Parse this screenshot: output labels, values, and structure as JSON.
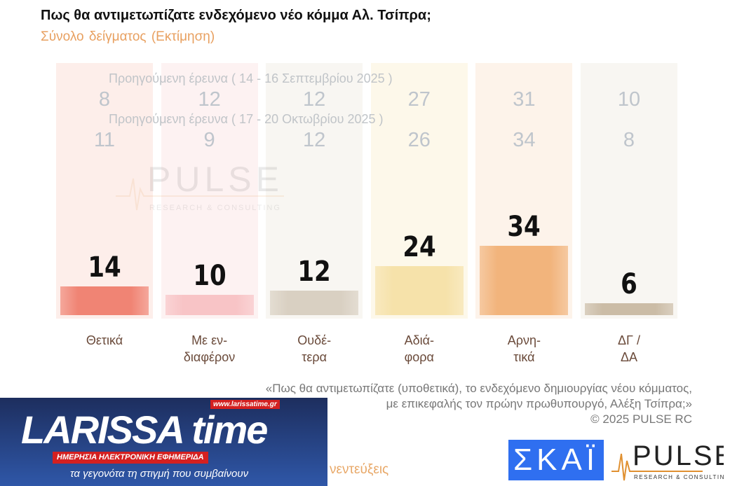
{
  "title": "Πως θα αντιμετωπίζατε ενδεχόμενο νέο κόμμα Αλ. Τσίπρα;",
  "subtitle": "Σύνολο δείγματος   (Εκτίμηση)",
  "chart_data": {
    "type": "bar",
    "title": "Πως θα αντιμετωπίζατε ενδεχόμενο νέο κόμμα Αλ. Τσίπρα;",
    "categories": [
      [
        "Θετικά",
        ""
      ],
      [
        "Με εν-",
        "διαφέρον"
      ],
      [
        "Ουδέ-",
        "τερα"
      ],
      [
        "Αδιά-",
        "φορα"
      ],
      [
        "Αρνη-",
        "τικά"
      ],
      [
        "ΔΓ /",
        "ΔΑ"
      ]
    ],
    "values": [
      14,
      10,
      12,
      24,
      34,
      6
    ],
    "colors": [
      "#f08474",
      "#f8c4c6",
      "#d9d0c2",
      "#f6e2aa",
      "#f2b47c",
      "#cbbca6"
    ],
    "bg_colors": [
      "#fdeeea",
      "#fdf2f2",
      "#f8f6f2",
      "#fdf8ea",
      "#fdf3ea",
      "#f8f6f2"
    ],
    "previous": [
      {
        "label": "Προηγούμενη έρευνα ( 14 - 16 Σεπτεμβρίου 2025 )",
        "values": [
          8,
          12,
          12,
          27,
          31,
          10
        ]
      },
      {
        "label": "Προηγούμενη έρευνα ( 17 - 20 Οκτωβρίου 2025 )",
        "values": [
          11,
          9,
          12,
          26,
          34,
          8
        ]
      }
    ],
    "ylim": [
      0,
      100
    ],
    "grid": false
  },
  "question_note": [
    "«Πως θα αντιμετωπίζατε (υποθετικά), το ενδεχόμενο δημιουργίας νέου κόμματος,",
    "με επικεφαλής τον πρώην πρωθυπουργό, Αλέξη Τσίπρα;»",
    "©  2025  PULSE RC"
  ],
  "partial_text": "νεντεύξεις",
  "larissa": {
    "logo": "LARISSA time",
    "url": "www.larissatime.gr",
    "tag": "ΗΜΕΡΗΣΙΑ ΗΛΕΚΤΡΟΝΙΚΗ ΕΦΗΜΕΡΙΔΑ",
    "slogan": "τα γεγονότα τη στιγμή που συμβαίνουν"
  },
  "skai_logo": "ΣΚΑΪ",
  "pulse_logo": {
    "name": "PULSE",
    "sub": "RESEARCH & CONSULTING"
  },
  "watermark": {
    "name": "PULSE",
    "sub": "RESEARCH & CONSULTING"
  }
}
